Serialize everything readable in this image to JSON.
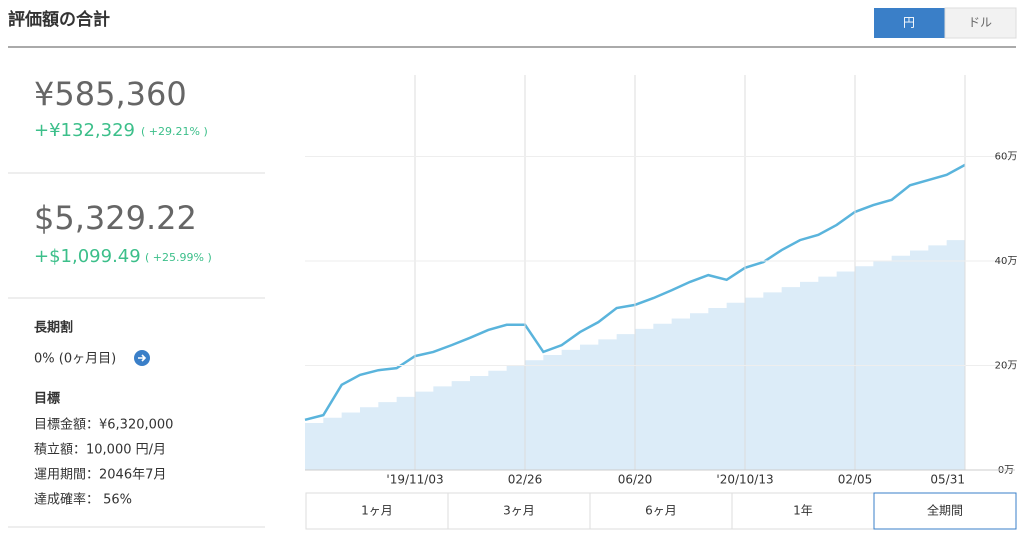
{
  "header": {
    "title": "評価額の合計",
    "currency_toggle": [
      "円",
      "ドル"
    ]
  },
  "summary": {
    "yen": {
      "total": "¥585,360",
      "gain": "+¥132,329",
      "gain_pct": "( +29.21% )"
    },
    "usd": {
      "total": "$5,329.22",
      "gain": "+$1,099.49",
      "gain_pct": "( +25.99% )"
    },
    "discount": {
      "label": "長期割",
      "value": "0% (0ヶ月目)"
    },
    "goal": {
      "label": "目標",
      "lines": [
        "目標金額：¥6,320,000",
        "積立額：10,000 円/月",
        "運用期間：2046年7月",
        "達成確率： 56%"
      ]
    }
  },
  "range_buttons": [
    "1ヶ月",
    "3ヶ月",
    "6ヶ月",
    "1年",
    "全期間"
  ],
  "chart_data": {
    "type": "line",
    "categories": [
      null,
      null,
      null,
      null,
      null,
      null,
      "'19/11/03",
      null,
      null,
      null,
      null,
      null,
      "02/26",
      null,
      null,
      null,
      null,
      null,
      "06/20",
      null,
      null,
      null,
      null,
      null,
      "'20/10/13",
      null,
      null,
      null,
      null,
      null,
      "02/05",
      null,
      null,
      null,
      null,
      null,
      "05/31"
    ],
    "series": [
      {
        "type": "step-area",
        "color": "#dcecf8",
        "values": [
          9,
          10,
          11,
          12,
          13,
          14,
          15,
          16,
          17,
          18,
          19,
          20,
          21,
          22,
          23,
          24,
          25,
          26,
          27,
          28,
          29,
          30,
          31,
          32,
          33,
          34,
          35,
          36,
          37,
          38,
          39,
          40,
          41,
          42,
          43,
          44,
          45
        ]
      },
      {
        "type": "line",
        "color": "#5ab4dc",
        "values": [
          9.6,
          10.5,
          16.3,
          18.2,
          19.1,
          19.5,
          21.8,
          22.6,
          23.9,
          25.3,
          26.8,
          27.8,
          27.8,
          22.6,
          23.9,
          26.4,
          28.3,
          31.0,
          31.6,
          32.9,
          34.4,
          36.0,
          37.3,
          36.4,
          38.7,
          39.8,
          42.1,
          44.0,
          45.0,
          46.9,
          49.4,
          50.7,
          51.7,
          54.5,
          55.5,
          56.5,
          58.4
        ]
      }
    ],
    "ylim": [
      0,
      75.6
    ],
    "yticks": [
      {
        "value": 0,
        "label": "0万"
      },
      {
        "value": 20,
        "label": "20万"
      },
      {
        "value": 40,
        "label": "40万"
      },
      {
        "value": 60,
        "label": "60万"
      }
    ],
    "grid": true
  }
}
